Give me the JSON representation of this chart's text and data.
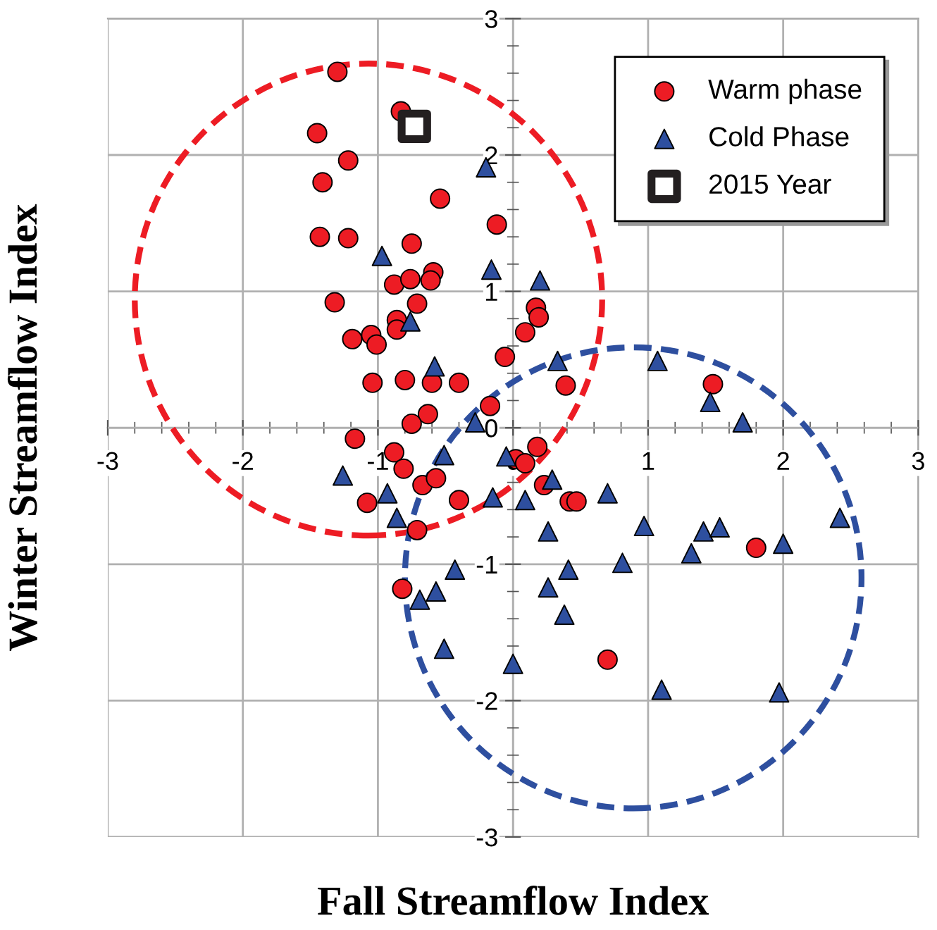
{
  "chart_data": {
    "type": "scatter",
    "xlabel": "Fall Streamflow Index",
    "ylabel": "Winter Streamflow Index",
    "xlim": [
      -3,
      3
    ],
    "ylim": [
      -3,
      3
    ],
    "xticks": [
      -3,
      -2,
      -1,
      0,
      1,
      2,
      3
    ],
    "yticks": [
      -3,
      -2,
      -1,
      0,
      1,
      2,
      3
    ],
    "grid": true,
    "legend": "top right",
    "series": [
      {
        "name": "Warm phase",
        "marker": "circle",
        "color": "#ed1c24",
        "x": [
          -1.3,
          -0.83,
          -1.45,
          -1.22,
          -1.41,
          -0.54,
          -0.12,
          -1.43,
          -1.22,
          -0.75,
          -0.59,
          -0.88,
          -0.76,
          -0.61,
          -1.32,
          -0.71,
          0.17,
          0.19,
          -0.86,
          -0.86,
          0.09,
          -1.19,
          -1.05,
          -1.01,
          -0.06,
          -1.04,
          -0.8,
          -0.6,
          -0.4,
          0.39,
          1.48,
          -0.17,
          -0.63,
          -0.75,
          -1.17,
          -0.88,
          0.18,
          0.02,
          0.09,
          -0.81,
          0.23,
          -0.67,
          -0.57,
          -0.4,
          -1.08,
          0.42,
          0.47,
          -0.71,
          1.8,
          -0.82,
          0.7
        ],
        "values": [
          2.61,
          2.32,
          2.16,
          1.96,
          1.8,
          1.68,
          1.49,
          1.4,
          1.39,
          1.35,
          1.14,
          1.05,
          1.09,
          1.08,
          0.92,
          0.91,
          0.88,
          0.81,
          0.79,
          0.72,
          0.7,
          0.65,
          0.68,
          0.61,
          0.52,
          0.33,
          0.35,
          0.33,
          0.33,
          0.31,
          0.32,
          0.16,
          0.1,
          0.03,
          -0.08,
          -0.18,
          -0.14,
          -0.23,
          -0.26,
          -0.3,
          -0.42,
          -0.42,
          -0.37,
          -0.53,
          -0.55,
          -0.54,
          -0.54,
          -0.75,
          -0.88,
          -1.18,
          -1.7
        ]
      },
      {
        "name": "Cold Phase",
        "marker": "triangle",
        "color": "#2e4f9f",
        "x": [
          -0.2,
          -0.97,
          -0.16,
          0.2,
          -0.76,
          -0.58,
          0.33,
          1.07,
          1.46,
          1.7,
          -0.28,
          -0.51,
          -0.05,
          -1.26,
          -0.93,
          0.29,
          -0.15,
          0.09,
          0.7,
          -0.86,
          0.26,
          0.97,
          1.41,
          1.53,
          2.42,
          1.32,
          2.0,
          0.81,
          0.41,
          -0.43,
          0.26,
          -0.57,
          -0.69,
          0.38,
          -0.51,
          0.0,
          1.1,
          1.97
        ],
        "values": [
          1.91,
          1.26,
          1.16,
          1.08,
          0.78,
          0.45,
          0.49,
          0.49,
          0.19,
          0.04,
          0.04,
          -0.2,
          -0.21,
          -0.35,
          -0.48,
          -0.38,
          -0.51,
          -0.53,
          -0.48,
          -0.66,
          -0.76,
          -0.72,
          -0.76,
          -0.73,
          -0.66,
          -0.92,
          -0.85,
          -0.99,
          -1.04,
          -1.04,
          -1.17,
          -1.2,
          -1.26,
          -1.37,
          -1.62,
          -1.73,
          -1.92,
          -1.94
        ]
      },
      {
        "name": "2015 Year",
        "marker": "square",
        "color": "#231f20",
        "x": [
          -0.73
        ],
        "values": [
          2.21
        ]
      }
    ]
  }
}
